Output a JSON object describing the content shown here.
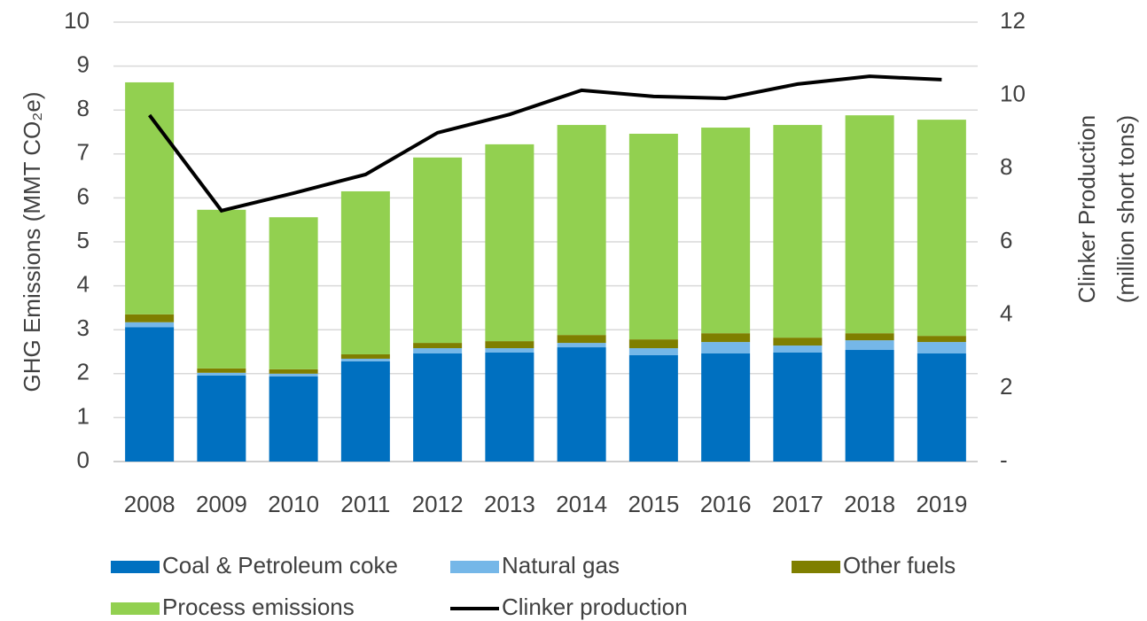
{
  "chart_data": {
    "type": "bar",
    "stacked": true,
    "ylabel": "GHG Emissions (MMT CO₂e)",
    "y2label": [
      "Clinker Production",
      "(million short tons)"
    ],
    "categories": [
      "2008",
      "2009",
      "2010",
      "2011",
      "2012",
      "2013",
      "2014",
      "2015",
      "2016",
      "2017",
      "2018",
      "2019"
    ],
    "series": [
      {
        "name": "Coal & Petroleum coke",
        "color": "#0070c0",
        "values": [
          3.06,
          1.96,
          1.94,
          2.28,
          2.46,
          2.48,
          2.6,
          2.42,
          2.46,
          2.48,
          2.54,
          2.46
        ]
      },
      {
        "name": "Natural gas",
        "color": "#75b7e8",
        "values": [
          0.11,
          0.06,
          0.06,
          0.06,
          0.12,
          0.1,
          0.1,
          0.16,
          0.26,
          0.16,
          0.22,
          0.26
        ]
      },
      {
        "name": "Other fuels",
        "color": "#7f7f00",
        "values": [
          0.18,
          0.1,
          0.1,
          0.1,
          0.12,
          0.16,
          0.18,
          0.2,
          0.2,
          0.18,
          0.16,
          0.14
        ]
      },
      {
        "name": "Process emissions",
        "color": "#92d050",
        "values": [
          5.28,
          3.61,
          3.46,
          3.71,
          4.22,
          4.48,
          4.78,
          4.68,
          4.68,
          4.84,
          4.96,
          4.92
        ]
      },
      {
        "name": "Clinker production",
        "color": "#000000",
        "type": "line",
        "axis": "y2",
        "values": [
          9.46,
          6.85,
          7.33,
          7.84,
          8.98,
          9.48,
          10.14,
          9.97,
          9.92,
          10.31,
          10.52,
          10.43
        ]
      }
    ],
    "ylim": [
      0,
      10
    ],
    "yticks": [
      0,
      1,
      2,
      3,
      4,
      5,
      6,
      7,
      8,
      9,
      10
    ],
    "y2lim": [
      0,
      12
    ],
    "y2ticks": [
      {
        "value": 0,
        "label": "-"
      },
      2,
      4,
      6,
      8,
      10,
      12
    ],
    "grid": true,
    "legend": "bottom"
  }
}
